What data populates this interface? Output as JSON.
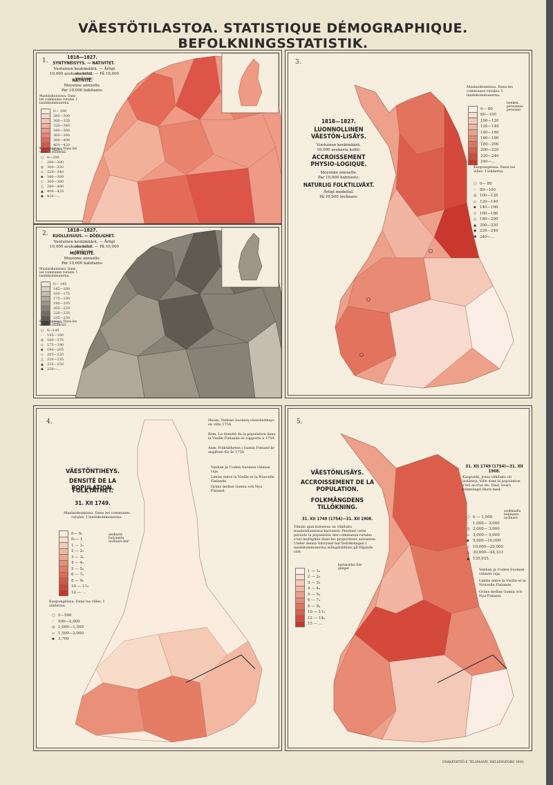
{
  "header": {
    "title": "VÄESTÖTILASTOA. STATISTIQUE DÉMOGRAPHIQUE. BEFOLKNINGSSTATISTIK."
  },
  "maps": [
    {
      "num": "1.",
      "period": "1818—1827.",
      "title": "SYNTYNEISYYS. — NATIVITET.",
      "sub1": "Vuotuinen keskimäärä. — Årligt medeltal.",
      "sub2": "10,000 asukasta kohti: — På 10,000 invånare:",
      "title_fr": "NATIVITÉ.",
      "sub_fr1": "Moyenne annuelle.",
      "sub_fr2": "Par 10,000 habitants:",
      "legend_head": "Maalaiskunnissa. Dans les communes rurales. I landskommunerna.",
      "legend": [
        "0— 280",
        "280—300",
        "300—320",
        "320—340",
        "340—360",
        "360—380",
        "380—400",
        "400—420",
        "420—…"
      ],
      "cities_head": "Kaupungeissa. Dans les villes. I städerna.",
      "cities": [
        "0—280",
        "280—300",
        "300—320",
        "320—340",
        "340—360",
        "360—380",
        "380—400",
        "400—420",
        "420—…"
      ],
      "colors": [
        "#fbe9de",
        "#f8d7c8",
        "#f5c5b2",
        "#f2b09b",
        "#ee9a84",
        "#e9836d",
        "#e36b58",
        "#dc5548",
        "#d4413a"
      ]
    },
    {
      "num": "2.",
      "period": "1818—1827.",
      "title": "KUOLLEISUUS. — DÖDLIGHET.",
      "sub1": "Vuotuinen keskimäärä. — Årligt medeltal.",
      "sub2": "10,000 asukasta kohti: — På 10,000 invånare:",
      "title_fr": "MORTALITÉ.",
      "sub_fr1": "Moyenne annuelle.",
      "sub_fr2": "Par 10,000 habitants:",
      "legend_head": "Maalaiskunnissa. Dans les communes rurales. I landskommunerna.",
      "legend": [
        "0— 145",
        "145—160",
        "160—175",
        "175—190",
        "190—205",
        "205—220",
        "220—235",
        "235—250",
        "250—…"
      ],
      "cities_head": "Kaupungeissa. Dans les villes. I städerna.",
      "cities": [
        "0—145",
        "145—160",
        "160—175",
        "175—190",
        "190—205",
        "205—220",
        "220—235",
        "235—250",
        "250—…"
      ],
      "colors": [
        "#ece7da",
        "#d9d3c5",
        "#c5beb0",
        "#b1aa9c",
        "#9c9588",
        "#878276",
        "#736e64",
        "#5f5b53",
        "#4b4843"
      ]
    },
    {
      "num": "3.",
      "period": "1818—1827.",
      "title": "LUONNOLLINEN VÄESTÖN-LISÄYS.",
      "sub1": "Vuotuinen keskimäärä.",
      "sub2": "10,000 asukasta kohti:",
      "title_fr": "ACCROISSEMENT PHYSIO-LOGIQUE.",
      "sub_fr1": "Moyenne annuelle.",
      "sub_fr2": "Par 10,000 habitants:",
      "title_sv": "NATURLIG FOLKTILLVÄXT.",
      "sub_sv1": "Årligt medeltal.",
      "sub_sv2": "På 10,000 invånare:",
      "legend_head": "Maalaiskunnissa. Dans les communes rurales. I landskommunerna.",
      "legend": [
        "0— 80",
        "80—100",
        "100—120",
        "120—140",
        "140—160",
        "160—180",
        "180—200",
        "200—220",
        "220—240",
        "240—…"
      ],
      "legend_unit": "henkeä. personnes. personer.",
      "cities_head": "Kaupungeissa. Dans les villes. I städerna.",
      "cities": [
        "0— 80",
        "80—100",
        "100—120",
        "120—140",
        "140—160",
        "160—180",
        "180—200",
        "200—220",
        "220—240",
        "240—…"
      ],
      "colors": [
        "#fbeee6",
        "#f8dccf",
        "#f5c9b8",
        "#f1b5a1",
        "#eda08a",
        "#e88a74",
        "#e2745f",
        "#db5e4c",
        "#d4493c",
        "#c9382f"
      ]
    },
    {
      "num": "4.",
      "title1": "VÄESTÖNTIHEYS.",
      "title2": "DENSITÉ DE LA POPULATION.",
      "title3": "FOLKTÄTHET.",
      "date": "31. XII 1749.",
      "legend_head": "Maalaiskunnissa. Dans les communes rurales. I landskommunerna.",
      "legend": [
        "0— 0₅",
        "0₅— 1",
        "1 — 1₅",
        "2 — 2₅",
        "3 — 3₅",
        "4 — 4₅",
        "5 — 5₅",
        "6 — 7₅",
        "8 — 9₅",
        "10 — 11₅",
        "12 — …"
      ],
      "legend_unit": "asukasta halvaantu invånare km²",
      "cities_head": "Kaupungeissa. Dans les villes. I städerna.",
      "cities": [
        "0—500",
        "500—1,000",
        "1,000—1,500",
        "1,500—2,000",
        "3,700"
      ],
      "notes": [
        "Huom. Vanhan Suomen väestöntiheys on vilta 1754.",
        "Rem. La densité de la population dans la Vieille Finlande se rapporte à 1754.",
        "Anm. Folktätheten i Gamla Finland är angifven för år 1754."
      ],
      "boundary": [
        "Vanhan ja Uuden Suomen välinen raja.",
        "Limite entre la Vieille et la Nouvelle Finlande.",
        "Gräns mellan Gamla och Nya Finland."
      ],
      "colors": [
        "#fbece0",
        "#f8dcca",
        "#f5cab5",
        "#f2b8a1",
        "#eea48c",
        "#ea9078",
        "#e57c66",
        "#e06854",
        "#d95544",
        "#d14436",
        "#c7352b"
      ]
    },
    {
      "num": "5.",
      "title1": "VÄESTÖNLISÄYS.",
      "title2": "ACCROISSEMENT DE LA POPULATION.",
      "title3": "FOLKMÄNGDENS TILLÖKNING.",
      "date": "31. XII 1749 (1754)—31. XII 1908.",
      "desc": "Tämän ajan kuluessa on väkiluku maalaiskunnissa kasvanut: Pendant cette période la population des communes rurales s'est multipliée dans les proportions suivantes: Under denna tidsrymd har befolkningen i landskommunerna mångdubblats på följande sätt:",
      "legend": [
        "1 — 1₉",
        "2 — 2₉",
        "3 — 3₉",
        "4 — 4₉",
        "5 — 5₉",
        "6 — 7₉",
        "8 — 9₉",
        "10 — 11₉",
        "12 — 14₉",
        "15 — …"
      ],
      "legend_unit": "kertaiseksi fois gånger",
      "right_date": "31. XII 1749 (1754)—31. XII 1908.",
      "right_desc": "Kaupunki, jossa väkiluku oli lisääntyi: Ville dont la population s'est accrue de: Stad, hvars folkmängd ökats med:",
      "cities": [
        "0 — 1,000",
        "1,000— 2,000",
        "2,000— 3,000",
        "3,000— 5,000",
        "5,000—10,000",
        "10,000—20,000",
        "30,000—44,333",
        "135,925."
      ],
      "cities_unit": "asukkaalla habitants invånare",
      "boundary": [
        "Vanhan ja Uuden Suomen välinen raja.",
        "Limite entre la Vieille et la Nouvelle Finlande.",
        "Gräns mellan Gamla och Nya Finland."
      ],
      "colors": [
        "#fbeee6",
        "#f8dccf",
        "#f5c9b8",
        "#f1b5a1",
        "#eda08a",
        "#e88a74",
        "#e2745f",
        "#db5e4c",
        "#d4493c",
        "#c9382f"
      ]
    }
  ],
  "footer": {
    "imprint": "OSAKEYHTIÖ F. TILGMANN, HELSINGFORS 1910."
  }
}
